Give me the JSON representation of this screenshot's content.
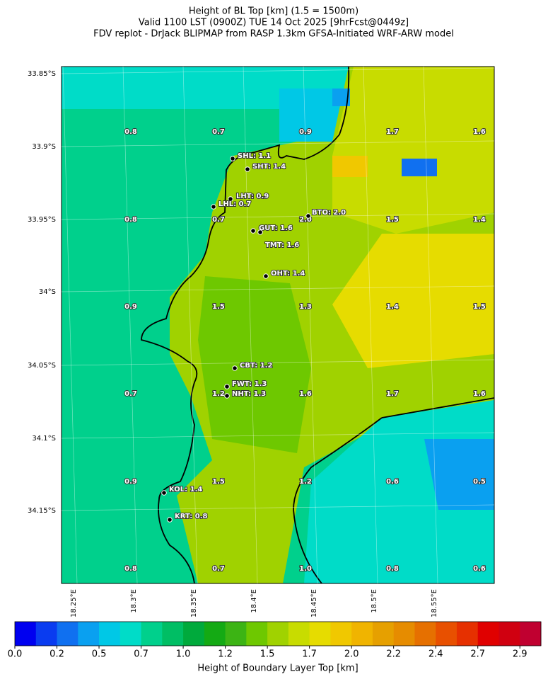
{
  "header": {
    "title_lines": [
      "Height of BL Top [km] (1.5 = 1500m)",
      "Valid 1100 LST (0900Z) TUE 14 Oct 2025 [9hrFcst@0449z]",
      "FDV replot - DrJack BLIPMAP from RASP 1.3km GFSA-Initiated WRF-ARW model"
    ]
  },
  "map": {
    "lat_labels": [
      "33.85°S",
      "33.9°S",
      "33.95°S",
      "34°S",
      "34.05°S",
      "34.1°S",
      "34.15°S"
    ],
    "lon_labels": [
      "18.25°E",
      "18.3°E",
      "18.35°E",
      "18.4°E",
      "18.45°E",
      "18.5°E",
      "18.55°E"
    ],
    "grid_labels": [
      [
        "0.8",
        "0.7",
        "0.9",
        "1.7",
        "1.6"
      ],
      [
        "0.8",
        "0.7",
        "2.0",
        "1.5",
        "1.4"
      ],
      [
        "0.9",
        "1.5",
        "1.3",
        "1.4",
        "1.5"
      ],
      [
        "0.7",
        "1.2",
        "1.6",
        "1.7",
        "1.6"
      ],
      [
        "0.9",
        "1.5",
        "1.2",
        "0.6",
        "0.5"
      ],
      [
        "0.8",
        "0.7",
        "1.0",
        "0.8",
        "0.6"
      ]
    ],
    "stations": [
      "SHL: 1.1",
      "SHT: 1.4",
      "LHT: 0.9",
      "LHL: 0.7",
      "BTO: 2.0",
      "GUT: 1.6",
      "TMT: 1.6",
      "OHT: 1.4",
      "CBT: 1.2",
      "FWT: 1.3",
      "NHT: 1.3",
      "KOL: 1.4",
      "KRT: 0.8"
    ]
  },
  "colorbar": {
    "label": "Height of Boundary Layer Top [km]",
    "ticks": [
      "0.0",
      "0.2",
      "0.5",
      "0.7",
      "1.0",
      "1.2",
      "1.5",
      "1.7",
      "2.0",
      "2.2",
      "2.4",
      "2.7",
      "2.9"
    ],
    "colors": [
      "#0000f0",
      "#0a3cf0",
      "#1070f0",
      "#0aa0f0",
      "#00c8e6",
      "#00dcc8",
      "#00d08c",
      "#00be64",
      "#00aa3c",
      "#14aa14",
      "#3cb414",
      "#6ec800",
      "#a0d200",
      "#c8dc00",
      "#e6dc00",
      "#f0c800",
      "#f0b400",
      "#e6a000",
      "#e68c00",
      "#e67000",
      "#e85000",
      "#e63000",
      "#e00000",
      "#d00010",
      "#c00030"
    ]
  }
}
